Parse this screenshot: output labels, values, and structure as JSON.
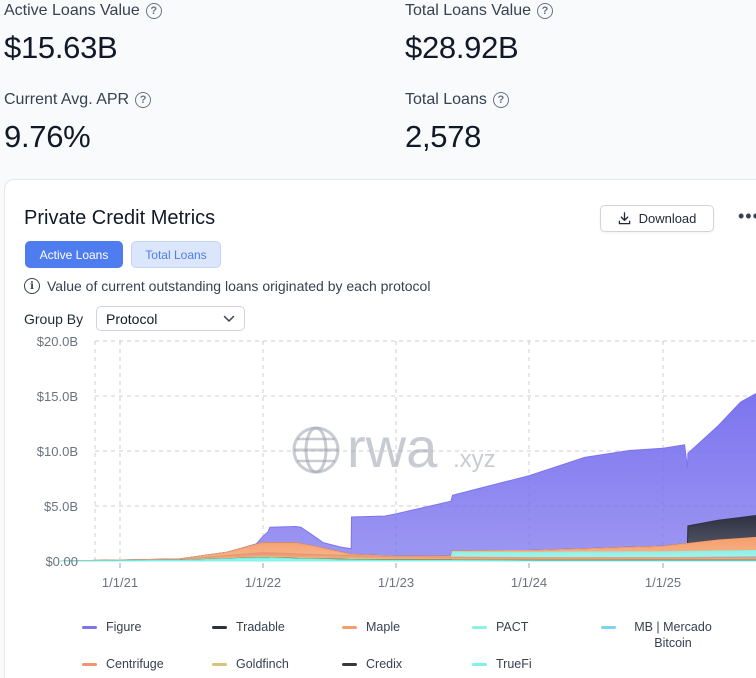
{
  "stats": [
    {
      "label": "Active Loans Value",
      "value": "$15.63B"
    },
    {
      "label": "Total Loans Value",
      "value": "$28.92B"
    },
    {
      "label": "Current Avg. APR",
      "value": "9.76%"
    },
    {
      "label": "Total Loans",
      "value": "2,578"
    }
  ],
  "help_glyph": "?",
  "card": {
    "title": "Private Credit Metrics",
    "download_label": "Download",
    "more_label": "•••",
    "tabs": {
      "active": "Active Loans",
      "inactive": "Total Loans"
    },
    "info_glyph": "i",
    "description": "Value of current outstanding loans originated by each protocol",
    "group_by_label": "Group By",
    "group_by_value": "Protocol",
    "watermark_main": "rwa",
    "watermark_suffix": ".xyz"
  },
  "chart_data": {
    "type": "area",
    "stacked": true,
    "x_type": "date",
    "x_ticks": [
      "1/1/21",
      "1/1/22",
      "1/1/23",
      "1/1/24",
      "1/1/25"
    ],
    "x_range": [
      "2020-08-01",
      "2025-10-01"
    ],
    "ylim": [
      0,
      20
    ],
    "y_ticks": [
      {
        "value": 0,
        "label": "$0.00"
      },
      {
        "value": 5,
        "label": "$5.0B"
      },
      {
        "value": 10,
        "label": "$10.0B"
      },
      {
        "value": 15,
        "label": "$15.0B"
      },
      {
        "value": 20,
        "label": "$20.0B"
      }
    ],
    "grid": true,
    "legend_position": "bottom",
    "series": [
      {
        "name": "Figure",
        "color": "#7c74ee",
        "points": [
          [
            "2020-08-01",
            0
          ],
          [
            "2021-10-01",
            0
          ],
          [
            "2021-12-15",
            0.05
          ],
          [
            "2022-01-15",
            1.0
          ],
          [
            "2022-01-20",
            1.4
          ],
          [
            "2022-04-15",
            1.5
          ],
          [
            "2022-06-15",
            0.5
          ],
          [
            "2022-08-01",
            0.45
          ],
          [
            "2022-08-31",
            0.5
          ],
          [
            "2022-09-01",
            3.4
          ],
          [
            "2022-12-01",
            3.6
          ],
          [
            "2023-06-01",
            5.0
          ],
          [
            "2024-01-01",
            6.8
          ],
          [
            "2024-06-01",
            8.3
          ],
          [
            "2024-10-01",
            8.8
          ],
          [
            "2025-03-01",
            9.0
          ],
          [
            "2025-03-10",
            6.6
          ],
          [
            "2025-06-01",
            8.6
          ],
          [
            "2025-08-01",
            10.5
          ],
          [
            "2025-09-20",
            11.2
          ]
        ]
      },
      {
        "name": "Tradable",
        "color": "#2d3142",
        "points": [
          [
            "2020-08-01",
            0
          ],
          [
            "2025-03-09",
            0
          ],
          [
            "2025-03-10",
            1.6
          ],
          [
            "2025-06-01",
            1.8
          ],
          [
            "2025-09-20",
            2.0
          ]
        ]
      },
      {
        "name": "Maple",
        "color": "#f59e6b",
        "points": [
          [
            "2020-08-01",
            0
          ],
          [
            "2021-06-01",
            0.05
          ],
          [
            "2021-10-01",
            0.3
          ],
          [
            "2022-01-01",
            0.9
          ],
          [
            "2022-04-01",
            1.0
          ],
          [
            "2022-06-01",
            0.7
          ],
          [
            "2022-09-01",
            0.1
          ],
          [
            "2023-01-01",
            0.05
          ],
          [
            "2024-01-01",
            0.15
          ],
          [
            "2024-06-01",
            0.3
          ],
          [
            "2025-01-01",
            0.5
          ],
          [
            "2025-06-01",
            1.0
          ],
          [
            "2025-09-20",
            1.2
          ]
        ]
      },
      {
        "name": "PACT",
        "color": "#8ff0e6",
        "points": [
          [
            "2020-08-01",
            0
          ],
          [
            "2023-06-01",
            0
          ],
          [
            "2023-06-05",
            0.5
          ],
          [
            "2025-09-20",
            0.55
          ]
        ]
      },
      {
        "name": "MB | Mercado Bitcoin",
        "color": "#7fd3ee",
        "points": [
          [
            "2020-08-01",
            0
          ],
          [
            "2025-01-01",
            0
          ],
          [
            "2025-09-20",
            0.1
          ]
        ]
      },
      {
        "name": "Centrifuge",
        "color": "#f0946b",
        "points": [
          [
            "2020-08-01",
            0
          ],
          [
            "2021-06-01",
            0.05
          ],
          [
            "2022-01-01",
            0.35
          ],
          [
            "2022-06-01",
            0.3
          ],
          [
            "2023-01-01",
            0.2
          ],
          [
            "2024-01-01",
            0.15
          ],
          [
            "2025-09-20",
            0.2
          ]
        ]
      },
      {
        "name": "Goldfinch",
        "color": "#dcc279",
        "points": [
          [
            "2020-08-01",
            0
          ],
          [
            "2021-06-01",
            0.02
          ],
          [
            "2022-01-01",
            0.1
          ],
          [
            "2023-01-01",
            0.1
          ],
          [
            "2024-01-01",
            0.08
          ],
          [
            "2025-09-20",
            0.05
          ]
        ]
      },
      {
        "name": "Credix",
        "color": "#3a3a3a",
        "points": [
          [
            "2020-08-01",
            0
          ],
          [
            "2022-01-01",
            0.02
          ],
          [
            "2023-01-01",
            0.04
          ],
          [
            "2024-01-01",
            0.03
          ],
          [
            "2025-09-20",
            0.03
          ]
        ]
      },
      {
        "name": "TrueFi",
        "color": "#7ff2e8",
        "points": [
          [
            "2020-08-01",
            0
          ],
          [
            "2021-06-01",
            0.05
          ],
          [
            "2022-01-01",
            0.3
          ],
          [
            "2022-06-01",
            0.15
          ],
          [
            "2023-01-01",
            0.05
          ],
          [
            "2024-01-01",
            0.03
          ],
          [
            "2025-09-20",
            0.03
          ]
        ]
      }
    ]
  }
}
